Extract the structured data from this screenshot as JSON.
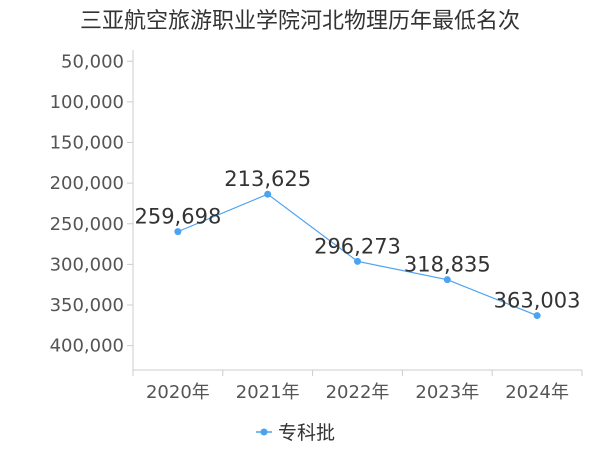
{
  "chart_data": {
    "type": "line",
    "title": "三亚航空旅游职业学院河北物理历年最低名次",
    "categories": [
      "2020年",
      "2021年",
      "2022年",
      "2023年",
      "2024年"
    ],
    "series": [
      {
        "name": "专科批",
        "values": [
          259698,
          213625,
          296273,
          318835,
          363003
        ],
        "color": "#4da3f0"
      }
    ],
    "data_labels": [
      "259,698",
      "213,625",
      "296,273",
      "318,835",
      "363,003"
    ],
    "y_ticks": [
      50000,
      100000,
      150000,
      200000,
      250000,
      300000,
      350000,
      400000
    ],
    "y_tick_labels": [
      "50,000",
      "100,000",
      "150,000",
      "200,000",
      "250,000",
      "300,000",
      "350,000",
      "400,000"
    ],
    "ylim": [
      30000,
      430000
    ],
    "y_inverted": true,
    "xlabel": "",
    "ylabel": "",
    "grid": false,
    "legend_position": "bottom-center"
  }
}
